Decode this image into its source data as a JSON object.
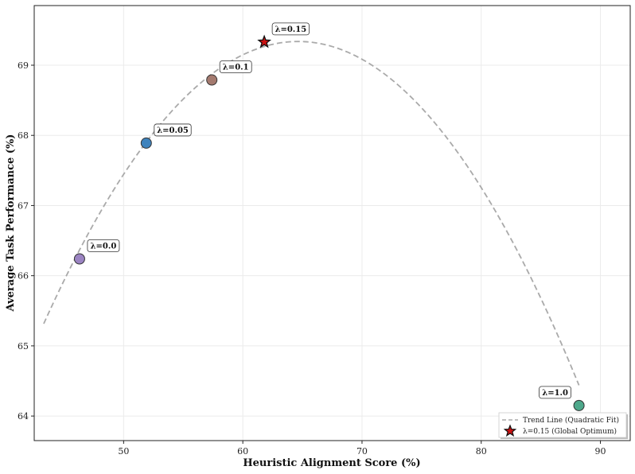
{
  "chart_data": {
    "type": "scatter",
    "title": "",
    "xlabel": "Heuristic Alignment Score (%)",
    "ylabel": "Average Task Performance (%)",
    "xlim": [
      42.5,
      92.5
    ],
    "ylim": [
      63.65,
      69.85
    ],
    "xticks": [
      50,
      60,
      70,
      80,
      90
    ],
    "yticks": [
      64,
      65,
      66,
      67,
      68,
      69
    ],
    "grid": true,
    "legend_position": "bottom-right",
    "points": [
      {
        "label": "λ=0.0",
        "x": 46.3,
        "y": 66.24,
        "color": "#9b84c2"
      },
      {
        "label": "λ=0.05",
        "x": 51.9,
        "y": 67.89,
        "color": "#3f83bd"
      },
      {
        "label": "λ=0.1",
        "x": 57.4,
        "y": 68.79,
        "color": "#a47a6f"
      },
      {
        "label": "λ=0.15",
        "x": 61.8,
        "y": 69.33,
        "color": "#cc1111",
        "marker": "star"
      },
      {
        "label": "λ=1.0",
        "x": 88.2,
        "y": 64.15,
        "color": "#4ea88b"
      }
    ],
    "trend_line": {
      "name": "Trend Line (Quadratic Fit)",
      "type": "quadratic",
      "coefficients": {
        "a": -0.00883,
        "b": 1.1416,
        "c": 32.44
      },
      "x_range": [
        43.3,
        88.2
      ],
      "color": "#aaaaaa",
      "dash": "dashed"
    },
    "legend": [
      {
        "label": "Trend Line (Quadratic Fit)",
        "kind": "dashed-line",
        "color": "#aaaaaa"
      },
      {
        "label": "λ=0.15 (Global Optimum)",
        "kind": "star",
        "color": "#cc1111"
      }
    ]
  }
}
